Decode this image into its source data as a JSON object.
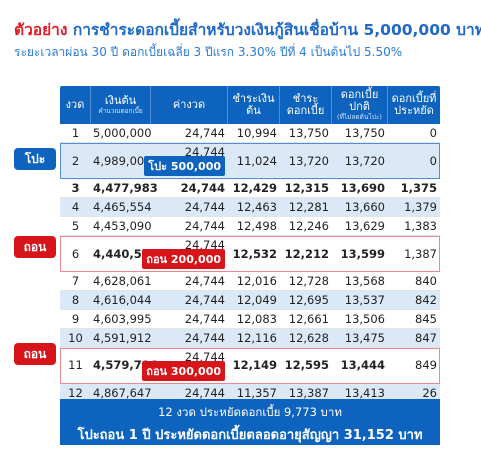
{
  "title": {
    "red": "ตัวอย่าง",
    "blue": "การชำระดอกเบี้ยสำหรับวงเงินกู้สินเชื่อบ้าน 5,000,000 บาท"
  },
  "subtitle": "ระยะเวลาผ่อน 30 ปี ดอกเบี้ยเฉลี่ย 3 ปีแรก 3.30% ปีที่ 4 เป็นต้นไป 5.50%",
  "headers": [
    {
      "label": "งวด",
      "sub": ""
    },
    {
      "label": "เงินต้น",
      "sub": "คำนวณดอกเบี้ย"
    },
    {
      "label": "ค่างวด",
      "sub": ""
    },
    {
      "label": "ชำระเงินต้น",
      "sub": ""
    },
    {
      "label": "ชำระดอกเบี้ย",
      "sub": ""
    },
    {
      "label": "ดอกเบี้ยปกติ",
      "sub": "(ที่ไม่ลดต้นโปะ)"
    },
    {
      "label": "ดอกเบี้ยที่ประหยัด",
      "sub": ""
    }
  ],
  "rows": [
    {
      "n": "1",
      "principal": "5,000,000",
      "pay": "24,744",
      "paid_principal": "10,994",
      "paid_interest": "13,750",
      "normal_interest": "13,750",
      "saved": "0"
    },
    {
      "n": "2",
      "principal": "4,989,006",
      "pay": "24,744",
      "tag": "โปะ 500,000",
      "paid_principal": "11,024",
      "paid_interest": "13,720",
      "normal_interest": "13,720",
      "saved": "0"
    },
    {
      "n": "3",
      "principal": "4,477,983",
      "pay": "24,744",
      "paid_principal": "12,429",
      "paid_interest": "12,315",
      "normal_interest": "13,690",
      "saved": "1,375"
    },
    {
      "n": "4",
      "principal": "4,465,554",
      "pay": "24,744",
      "paid_principal": "12,463",
      "paid_interest": "12,281",
      "normal_interest": "13,660",
      "saved": "1,379"
    },
    {
      "n": "5",
      "principal": "4,453,090",
      "pay": "24,744",
      "paid_principal": "12,498",
      "paid_interest": "12,246",
      "normal_interest": "13,629",
      "saved": "1,383"
    },
    {
      "n": "6",
      "principal": "4,440,593",
      "pay": "24,744",
      "tag": "ถอน 200,000",
      "paid_principal": "12,532",
      "paid_interest": "12,212",
      "normal_interest": "13,599",
      "saved": "1,387"
    },
    {
      "n": "7",
      "principal": "4,628,061",
      "pay": "24,744",
      "paid_principal": "12,016",
      "paid_interest": "12,728",
      "normal_interest": "13,568",
      "saved": "840"
    },
    {
      "n": "8",
      "principal": "4,616,044",
      "pay": "24,744",
      "paid_principal": "12,049",
      "paid_interest": "12,695",
      "normal_interest": "13,537",
      "saved": "842"
    },
    {
      "n": "9",
      "principal": "4,603,995",
      "pay": "24,744",
      "paid_principal": "12,083",
      "paid_interest": "12,661",
      "normal_interest": "13,506",
      "saved": "845"
    },
    {
      "n": "10",
      "principal": "4,591,912",
      "pay": "24,744",
      "paid_principal": "12,116",
      "paid_interest": "12,628",
      "normal_interest": "13,475",
      "saved": "847"
    },
    {
      "n": "11",
      "principal": "4,579,796",
      "pay": "24,744",
      "tag": "ถอน 300,000",
      "paid_principal": "12,149",
      "paid_interest": "12,595",
      "normal_interest": "13,444",
      "saved": "849"
    },
    {
      "n": "12",
      "principal": "4,867,647",
      "pay": "24,744",
      "paid_principal": "11,357",
      "paid_interest": "13,387",
      "normal_interest": "13,413",
      "saved": "26"
    }
  ],
  "badges": {
    "pay_off": "โปะ",
    "withdraw": "ถอน"
  },
  "colors": {
    "accent_blue": "#0d63be",
    "accent_red": "#d8141b",
    "row_shade": "#dbe8f7"
  },
  "summary": {
    "line1": "12 งวด ประหยัดดอกเบี้ย 9,773 บาท",
    "line2": "โปะถอน 1 ปี ประหยัดดอกเบี้ยตลอดอายุสัญญา 31,152 บาท"
  }
}
